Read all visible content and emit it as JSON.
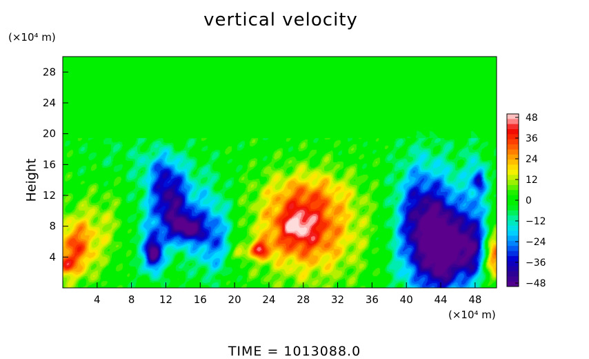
{
  "chart_data": {
    "type": "heatmap",
    "title": "vertical velocity",
    "ylabel": "Height",
    "x_unit": "(×10⁴ m)",
    "y_unit": "(×10⁴ m)",
    "xlim": [
      0,
      50.5
    ],
    "ylim": [
      0,
      30
    ],
    "x_ticks": [
      "4",
      "8",
      "12",
      "16",
      "20",
      "24",
      "28",
      "32",
      "36",
      "40",
      "44",
      "48"
    ],
    "y_ticks": [
      "4",
      "8",
      "12",
      "16",
      "20",
      "24",
      "28"
    ],
    "colorbar": {
      "range": [
        -50,
        50
      ],
      "ticks": [
        "48",
        "36",
        "24",
        "12",
        "0",
        "−12",
        "−24",
        "−36",
        "−48"
      ]
    },
    "features": [
      {
        "x": 28.5,
        "y": 7.5,
        "sx": 4.5,
        "sy": 4.5,
        "value": 28
      },
      {
        "x": 27.5,
        "y": 8.0,
        "sx": 2.2,
        "sy": 2.2,
        "value": 18
      },
      {
        "x": 27.0,
        "y": 8.2,
        "sx": 0.9,
        "sy": 0.9,
        "value": 10
      },
      {
        "x": 28.5,
        "y": 12.5,
        "sx": 3.5,
        "sy": 2.0,
        "value": 12
      },
      {
        "x": 23.0,
        "y": 5.0,
        "sx": 0.8,
        "sy": 0.8,
        "value": 32
      },
      {
        "x": 20.5,
        "y": 4.5,
        "sx": 0.6,
        "sy": 0.6,
        "value": 18
      },
      {
        "x": 1.3,
        "y": 5.0,
        "sx": 1.6,
        "sy": 2.8,
        "value": 30
      },
      {
        "x": 0.2,
        "y": 3.0,
        "sx": 0.6,
        "sy": 0.8,
        "value": 20
      },
      {
        "x": 5.0,
        "y": 8.0,
        "sx": 2.5,
        "sy": 3.5,
        "value": 12
      },
      {
        "x": 50.3,
        "y": 4.0,
        "sx": 0.8,
        "sy": 2.2,
        "value": 32
      },
      {
        "x": 43.0,
        "y": 7.0,
        "sx": 2.8,
        "sy": 6.0,
        "value": -38
      },
      {
        "x": 44.0,
        "y": 5.0,
        "sx": 1.3,
        "sy": 4.0,
        "value": -28
      },
      {
        "x": 41.0,
        "y": 9.0,
        "sx": 1.5,
        "sy": 5.0,
        "value": -16
      },
      {
        "x": 47.0,
        "y": 5.0,
        "sx": 1.4,
        "sy": 3.0,
        "value": -32
      },
      {
        "x": 48.0,
        "y": 10.0,
        "sx": 1.0,
        "sy": 6.0,
        "value": -14
      },
      {
        "x": 48.5,
        "y": 14.0,
        "sx": 0.5,
        "sy": 1.2,
        "value": -26
      },
      {
        "x": 10.5,
        "y": 4.5,
        "sx": 0.7,
        "sy": 1.6,
        "value": -45
      },
      {
        "x": 12.5,
        "y": 11.0,
        "sx": 1.5,
        "sy": 3.0,
        "value": -32
      },
      {
        "x": 14.5,
        "y": 7.8,
        "sx": 1.2,
        "sy": 1.2,
        "value": -34
      },
      {
        "x": 17.5,
        "y": 6.0,
        "sx": 1.5,
        "sy": 3.0,
        "value": -22
      },
      {
        "x": 16.0,
        "y": 10.0,
        "sx": 2.5,
        "sy": 4.0,
        "value": -14
      },
      {
        "x": 11.5,
        "y": 15.0,
        "sx": 1.5,
        "sy": 2.0,
        "value": -16
      },
      {
        "x": 10.0,
        "y": 8.0,
        "sx": 2.5,
        "sy": 4.0,
        "value": -12
      },
      {
        "x": 8.0,
        "y": 17.0,
        "sx": 4.0,
        "sy": 2.0,
        "value": -5
      }
    ]
  }
}
